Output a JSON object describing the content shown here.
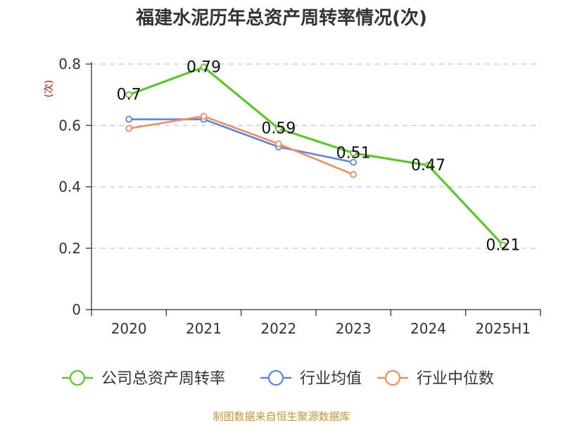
{
  "chart_data": {
    "type": "line",
    "title": "福建水泥历年总资产周转率情况(次)",
    "ylabel": "(次)",
    "categories": [
      "2020",
      "2021",
      "2022",
      "2023",
      "2024",
      "2025H1"
    ],
    "ylim": [
      0,
      0.8
    ],
    "yticks": [
      0,
      0.2,
      0.4,
      0.6,
      0.8
    ],
    "ytick_labels": [
      "0",
      "0.2",
      "0.4",
      "0.6",
      "0.8"
    ],
    "grid": true,
    "legend_position": "bottom",
    "series": [
      {
        "name": "公司总资产周转率",
        "color": "#5cc62a",
        "values": [
          0.7,
          0.79,
          0.59,
          0.51,
          0.47,
          0.21
        ],
        "labels": [
          "0.7",
          "0.79",
          "0.59",
          "0.51",
          "0.47",
          "0.21"
        ]
      },
      {
        "name": "行业均值",
        "color": "#5b86e5",
        "values": [
          0.62,
          0.62,
          0.53,
          0.48,
          null,
          null
        ]
      },
      {
        "name": "行业中位数",
        "color": "#f28e5c",
        "values": [
          0.59,
          0.63,
          0.54,
          0.44,
          null,
          null
        ]
      }
    ]
  },
  "source_note": "制图数据来自恒生聚源数据库",
  "colors": {
    "title": "#333333",
    "axis": "#333333",
    "grid": "#c8c8c8",
    "ylabel": "#cc0000",
    "source": "#c8962e"
  }
}
